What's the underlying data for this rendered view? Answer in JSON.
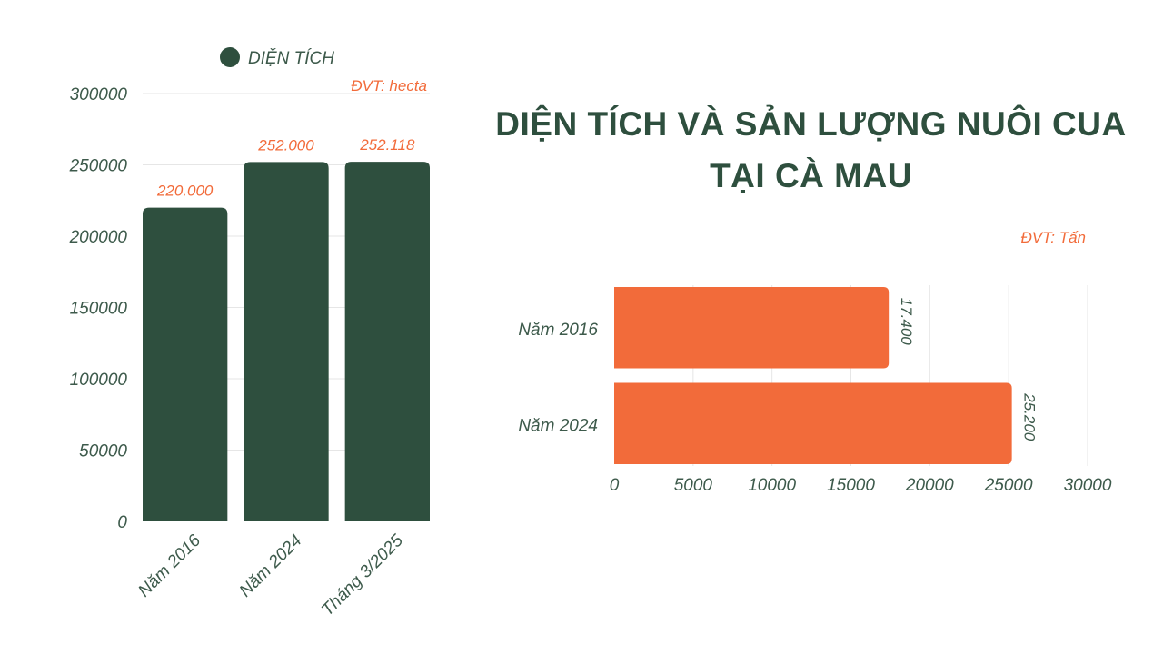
{
  "title": {
    "line1": "DIỆN TÍCH VÀ SẢN LƯỢNG NUÔI CUA",
    "line2": "TẠI CÀ MAU"
  },
  "colors": {
    "dark_green": "#2e4f3e",
    "orange": "#f26b3a",
    "grid": "#e6e6e6"
  },
  "chart_data": [
    {
      "type": "bar",
      "orientation": "vertical",
      "categories": [
        "Năm 2016",
        "Năm 2024",
        "Tháng 3/2025"
      ],
      "series": [
        {
          "name": "DIỆN TÍCH",
          "values": [
            220000,
            252000,
            252118
          ],
          "color": "#2e4f3e"
        }
      ],
      "data_labels": [
        "220.000",
        "252.000",
        "252.118"
      ],
      "unit_note": "ĐVT: hecta",
      "ylim": [
        0,
        300000
      ],
      "yticks": [
        0,
        50000,
        100000,
        150000,
        200000,
        250000,
        300000
      ],
      "legend": "top",
      "grid": true
    },
    {
      "type": "bar",
      "orientation": "horizontal",
      "categories": [
        "Năm 2016",
        "Năm 2024"
      ],
      "series": [
        {
          "values": [
            17400,
            25200
          ],
          "color": "#f26b3a"
        }
      ],
      "data_labels": [
        "17.400",
        "25.200"
      ],
      "unit_note": "ĐVT: Tấn",
      "xlim": [
        0,
        30000
      ],
      "xticks": [
        0,
        5000,
        10000,
        15000,
        20000,
        25000,
        30000
      ],
      "grid": true
    }
  ]
}
